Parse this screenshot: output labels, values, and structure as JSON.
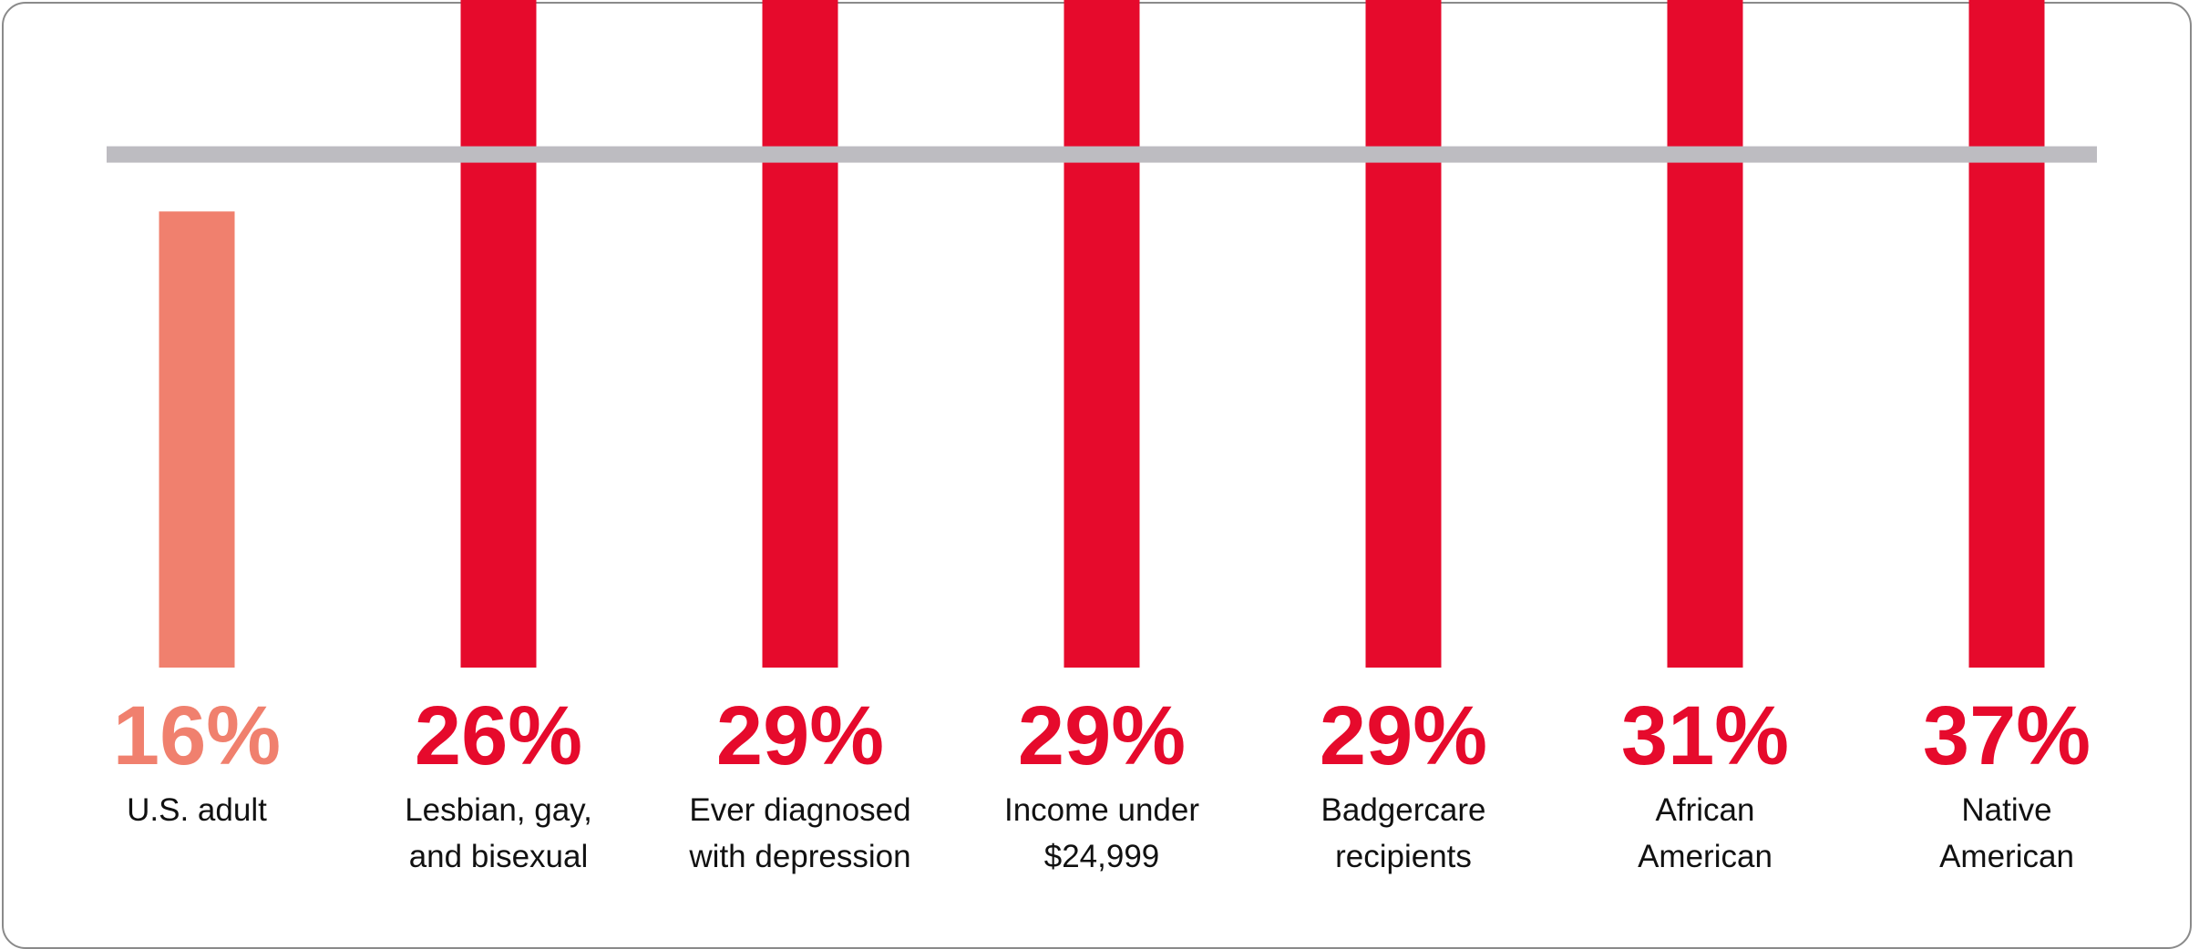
{
  "chart_data": {
    "type": "bar",
    "categories": [
      [
        "U.S. adult"
      ],
      [
        "Lesbian, gay,",
        "and bisexual"
      ],
      [
        "Ever diagnosed",
        "with depression"
      ],
      [
        "Income under",
        "$24,999"
      ],
      [
        "Badgercare",
        "recipients"
      ],
      [
        "African",
        "American"
      ],
      [
        "Native",
        "American"
      ]
    ],
    "values": [
      16,
      26,
      29,
      29,
      29,
      31,
      37
    ],
    "value_labels": [
      "16%",
      "26%",
      "29%",
      "29%",
      "29%",
      "31%",
      "37%"
    ],
    "reference_line": 18,
    "grid": false,
    "legend": "none"
  },
  "colors": {
    "baseline_bar": "#f0806e",
    "bar": "#e60a2c",
    "reference_line": "#bdbcc1",
    "category_text": "#111111"
  }
}
